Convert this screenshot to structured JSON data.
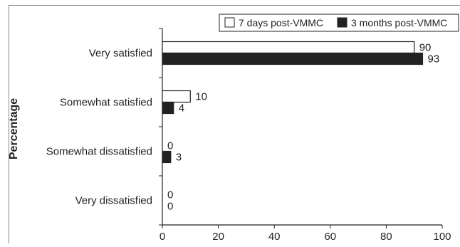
{
  "chart_data": {
    "type": "bar",
    "orientation": "horizontal",
    "categories": [
      "Very satisfied",
      "Somewhat satisfied",
      "Somewhat dissatisfied",
      "Very dissatisfied"
    ],
    "series": [
      {
        "name": "7 days post-VMMC",
        "values": [
          90,
          10,
          0,
          0
        ],
        "color": "#ffffff"
      },
      {
        "name": "3 months post-VMMC",
        "values": [
          93,
          4,
          3,
          0
        ],
        "color": "#222222"
      }
    ],
    "title": "",
    "xlabel": "",
    "ylabel": "Percentage",
    "xlim": [
      0,
      100
    ],
    "xticks": [
      0,
      20,
      40,
      60,
      80,
      100
    ],
    "grid": false,
    "legend_position": "top-right"
  }
}
